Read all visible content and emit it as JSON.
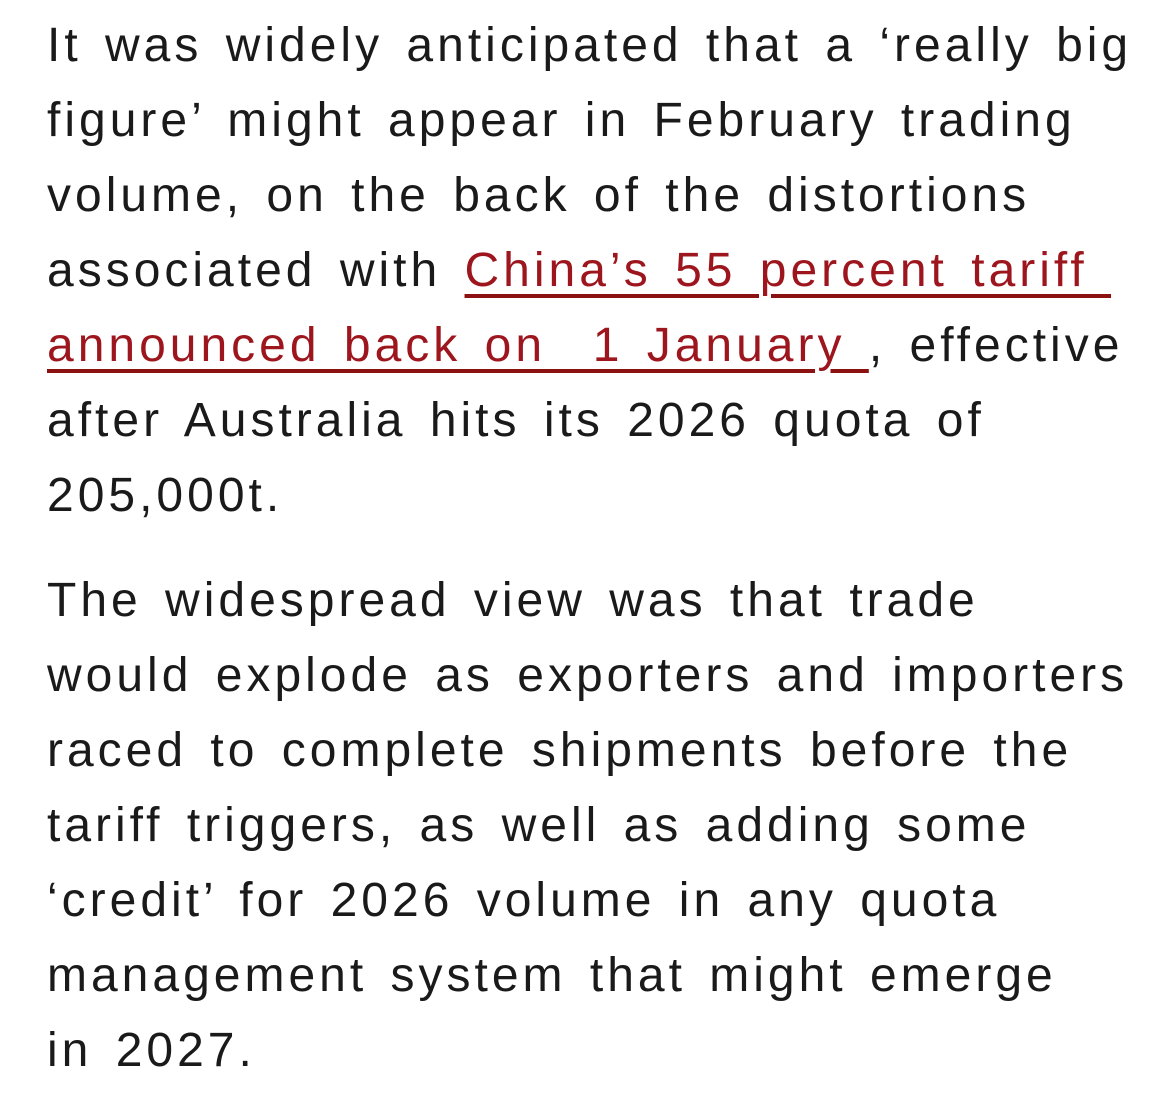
{
  "colors": {
    "background": "#ffffff",
    "body_text": "#1a1a1a",
    "link_text": "#9d161d",
    "link_underline": "#8c1212"
  },
  "article": {
    "paragraphs": [
      {
        "lines": [
          {
            "segments": [
              {
                "style": "text",
                "text": "It was widely anticipated that a ‘really big"
              }
            ]
          },
          {
            "segments": [
              {
                "style": "text",
                "text": "figure’ might appear in February trading"
              }
            ]
          },
          {
            "segments": [
              {
                "style": "text",
                "text": "volume, on the back of the distortions"
              }
            ]
          },
          {
            "segments": [
              {
                "style": "text",
                "text": "associated with "
              },
              {
                "style": "link",
                "text": "China’s 55 percent tariff "
              }
            ]
          },
          {
            "segments": [
              {
                "style": "link",
                "text": "announced back on  1 January "
              },
              {
                "style": "text",
                "text": ", effective"
              }
            ]
          },
          {
            "segments": [
              {
                "style": "text",
                "text": "after Australia hits its 2026 quota of"
              }
            ]
          },
          {
            "segments": [
              {
                "style": "text",
                "text": "205,000t."
              }
            ]
          }
        ]
      },
      {
        "lines": [
          {
            "segments": [
              {
                "style": "text",
                "text": "The widespread view was that trade"
              }
            ]
          },
          {
            "segments": [
              {
                "style": "text",
                "text": "would explode as exporters and importers"
              }
            ]
          },
          {
            "segments": [
              {
                "style": "text",
                "text": "raced to complete shipments before the"
              }
            ]
          },
          {
            "segments": [
              {
                "style": "text",
                "text": "tariff triggers, as well as adding some"
              }
            ]
          },
          {
            "segments": [
              {
                "style": "text",
                "text": "‘credit’ for 2026 volume in any quota"
              }
            ]
          },
          {
            "segments": [
              {
                "style": "text",
                "text": "management system that might emerge"
              }
            ]
          },
          {
            "segments": [
              {
                "style": "text",
                "text": "in 2027."
              }
            ]
          }
        ]
      }
    ]
  }
}
